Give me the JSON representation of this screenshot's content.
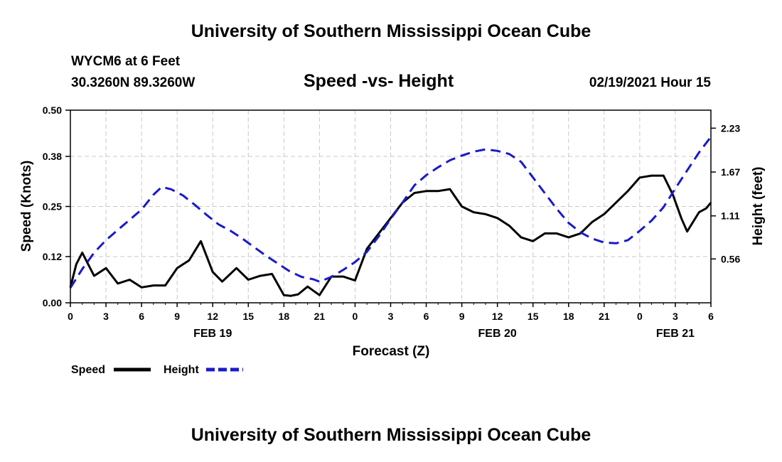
{
  "header": {
    "title": "University of Southern Mississippi Ocean Cube",
    "station": "WYCM6 at 6 Feet",
    "coords": "30.3260N 89.3260W",
    "subtitle": "Speed -vs- Height",
    "datestamp": "02/19/2021 Hour 15"
  },
  "footer": {
    "title": "University of Southern Mississippi Ocean Cube"
  },
  "chart_data": {
    "type": "line",
    "xlabel": "Forecast (Z)",
    "ylabel_left": "Speed (Knots)",
    "ylabel_right": "Height (feet)",
    "x_range_hours": [
      0,
      54
    ],
    "x_tick_step_hours": 3,
    "x_tick_labels": [
      "0",
      "3",
      "6",
      "9",
      "12",
      "15",
      "18",
      "21",
      "0",
      "3",
      "6",
      "9",
      "12",
      "15",
      "18",
      "21",
      "0",
      "3",
      "6"
    ],
    "date_labels": [
      {
        "text": "FEB 19",
        "hour": 12
      },
      {
        "text": "FEB 20",
        "hour": 36
      },
      {
        "text": "FEB 21",
        "hour": 51
      }
    ],
    "y_left": {
      "min": 0,
      "max": 0.5,
      "ticks": [
        0.0,
        0.12,
        0.25,
        0.38,
        0.5
      ],
      "tick_labels": [
        "0.00",
        "0.12",
        "0.25",
        "0.38",
        "0.50"
      ]
    },
    "y_right": {
      "min": 0.0,
      "max": 2.46,
      "ticks": [
        0.56,
        1.11,
        1.67,
        2.23
      ],
      "tick_labels": [
        "0.56",
        "1.11",
        "1.67",
        "2.23"
      ]
    },
    "grid": true,
    "series": [
      {
        "name": "Speed",
        "color": "#000000",
        "dashed": false,
        "axis": "left",
        "x": [
          0,
          0.5,
          1,
          1.5,
          2,
          3,
          4,
          5,
          6,
          7,
          8,
          9,
          10,
          11,
          12,
          12.8,
          14,
          15,
          16,
          17,
          18,
          18.6,
          19.2,
          20,
          21,
          22,
          23,
          24,
          25,
          26,
          27,
          28,
          29,
          30,
          31,
          32,
          33,
          34,
          35,
          36,
          37,
          38,
          39,
          40,
          41,
          42,
          43,
          44,
          45,
          46,
          47,
          48,
          49,
          50,
          50.8,
          51.5,
          52,
          53,
          53.6,
          54
        ],
        "y": [
          0.04,
          0.1,
          0.13,
          0.1,
          0.07,
          0.09,
          0.05,
          0.06,
          0.04,
          0.045,
          0.045,
          0.09,
          0.11,
          0.16,
          0.08,
          0.055,
          0.09,
          0.06,
          0.07,
          0.075,
          0.02,
          0.018,
          0.022,
          0.042,
          0.02,
          0.068,
          0.068,
          0.058,
          0.14,
          0.18,
          0.22,
          0.26,
          0.285,
          0.29,
          0.29,
          0.295,
          0.25,
          0.235,
          0.23,
          0.22,
          0.2,
          0.17,
          0.16,
          0.18,
          0.18,
          0.17,
          0.18,
          0.21,
          0.23,
          0.26,
          0.29,
          0.325,
          0.33,
          0.33,
          0.28,
          0.22,
          0.185,
          0.235,
          0.245,
          0.26
        ]
      },
      {
        "name": "Height",
        "color": "#1a1acc",
        "dashed": true,
        "axis": "right",
        "x": [
          0,
          1,
          2,
          3,
          4,
          5,
          6,
          7,
          7.7,
          8.5,
          9.5,
          10.5,
          11.5,
          12.5,
          13.5,
          14.5,
          15.5,
          16.5,
          17.5,
          18.5,
          19.5,
          20.5,
          21,
          22,
          23,
          24,
          25,
          26,
          27,
          28,
          29,
          30,
          31,
          32,
          33,
          34,
          35,
          36,
          37,
          38,
          39,
          40,
          41,
          42,
          43,
          44,
          45,
          46,
          47,
          48,
          49,
          50,
          51,
          52,
          53,
          54
        ],
        "y": [
          0.19,
          0.43,
          0.64,
          0.8,
          0.93,
          1.06,
          1.19,
          1.38,
          1.48,
          1.45,
          1.37,
          1.25,
          1.12,
          1.0,
          0.92,
          0.82,
          0.71,
          0.6,
          0.5,
          0.4,
          0.33,
          0.3,
          0.27,
          0.33,
          0.42,
          0.52,
          0.65,
          0.85,
          1.07,
          1.28,
          1.5,
          1.63,
          1.73,
          1.82,
          1.88,
          1.93,
          1.96,
          1.94,
          1.9,
          1.8,
          1.6,
          1.4,
          1.2,
          1.02,
          0.9,
          0.82,
          0.77,
          0.76,
          0.8,
          0.92,
          1.05,
          1.22,
          1.46,
          1.69,
          1.92,
          2.12
        ]
      }
    ],
    "legend": [
      {
        "label": "Speed",
        "color": "#000000",
        "dashed": false
      },
      {
        "label": "Height",
        "color": "#1a1acc",
        "dashed": true
      }
    ],
    "legend_position": "bottom-left"
  }
}
